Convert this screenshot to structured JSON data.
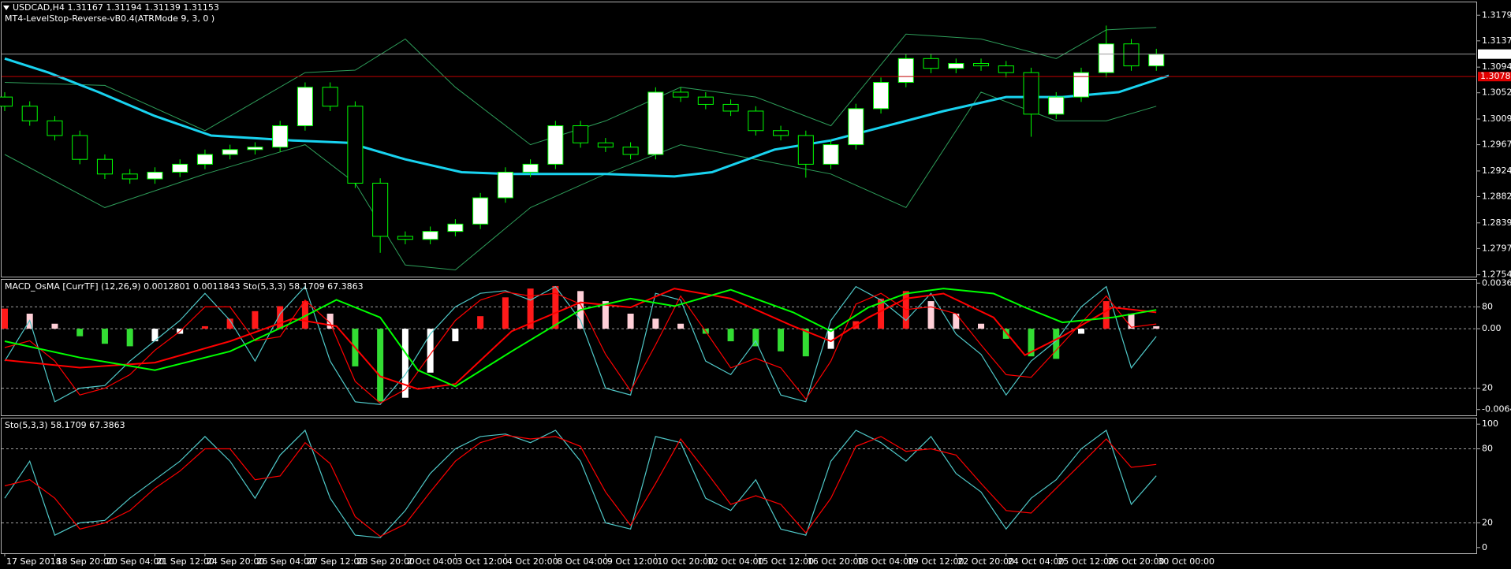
{
  "chart_data": [
    {
      "type": "candlestick",
      "title": "USDCAD,H4  1.31167 1.31194 1.31139 1.31153",
      "subtitle": "MT4-LevelStop-Reverse-vB0.4(ATRMode 9, 3, 0 )",
      "x": [
        0,
        4,
        8,
        12,
        16,
        20,
        24,
        28,
        32,
        36,
        40,
        44,
        48,
        52,
        56,
        60,
        64,
        68,
        72,
        76,
        80,
        84,
        88,
        92,
        96,
        100,
        104,
        108,
        112,
        116,
        120,
        124,
        128,
        132,
        136,
        140,
        144,
        148,
        152,
        156,
        160,
        164,
        168,
        172,
        176,
        180,
        184
      ],
      "open": [
        1.3045,
        1.303,
        1.3006,
        1.2982,
        1.2943,
        1.2919,
        1.2911,
        1.2922,
        1.2935,
        1.2951,
        1.2959,
        1.2963,
        1.2998,
        1.3061,
        1.303,
        1.2904,
        1.2817,
        1.2812,
        1.2825,
        1.2837,
        1.288,
        1.2922,
        1.2935,
        1.2998,
        1.297,
        1.2963,
        1.2951,
        1.3053,
        1.3045,
        1.3033,
        1.3022,
        1.299,
        1.2982,
        1.2935,
        1.2967,
        1.3026,
        1.3069,
        1.3108,
        1.3092,
        1.31,
        1.3096,
        1.3085,
        1.3017,
        1.3045,
        1.3085,
        1.3132,
        1.3096
      ],
      "high": [
        1.3053,
        1.3038,
        1.3014,
        1.299,
        1.2951,
        1.2927,
        1.293,
        1.2943,
        1.2959,
        1.2967,
        1.2971,
        1.3006,
        1.3069,
        1.3069,
        1.3038,
        1.2912,
        1.2825,
        1.2833,
        1.2845,
        1.2888,
        1.293,
        1.2943,
        1.3006,
        1.3006,
        1.2978,
        1.2971,
        1.3061,
        1.3061,
        1.3053,
        1.3041,
        1.303,
        1.2998,
        1.299,
        1.2975,
        1.3034,
        1.3077,
        1.3116,
        1.3116,
        1.3108,
        1.3108,
        1.3104,
        1.3093,
        1.3053,
        1.3093,
        1.3162,
        1.314,
        1.3124
      ],
      "low": [
        1.3022,
        1.2998,
        1.2974,
        1.2935,
        1.2911,
        1.2903,
        1.2903,
        1.2914,
        1.2927,
        1.2943,
        1.2951,
        1.2955,
        1.299,
        1.3022,
        1.2896,
        1.279,
        1.2804,
        1.2804,
        1.2817,
        1.2829,
        1.2872,
        1.2914,
        1.2927,
        1.2962,
        1.2955,
        1.2943,
        1.2943,
        1.3037,
        1.3025,
        1.3014,
        1.2982,
        1.2974,
        1.2913,
        1.2927,
        1.2959,
        1.3018,
        1.3061,
        1.3084,
        1.3084,
        1.3088,
        1.3077,
        1.298,
        1.3009,
        1.3037,
        1.3077,
        1.3088,
        1.3088
      ],
      "close": [
        1.303,
        1.3006,
        1.2982,
        1.2943,
        1.2919,
        1.2911,
        1.2922,
        1.2935,
        1.2951,
        1.2959,
        1.2963,
        1.2998,
        1.3061,
        1.303,
        1.2904,
        1.2817,
        1.2812,
        1.2825,
        1.2837,
        1.288,
        1.2922,
        1.2935,
        1.2998,
        1.297,
        1.2963,
        1.2951,
        1.3053,
        1.3045,
        1.3033,
        1.3022,
        1.299,
        1.2982,
        1.2935,
        1.2967,
        1.3026,
        1.3069,
        1.3108,
        1.3092,
        1.31,
        1.3096,
        1.3085,
        1.3017,
        1.3045,
        1.3085,
        1.3132,
        1.3096,
        1.3115
      ],
      "up_color": "#ffffff",
      "down_color": "#000000",
      "wick_color": "#00ff00",
      "overlays": [
        {
          "color": "#2e9e5a",
          "line_width": 1,
          "x": [
            0,
            16,
            32,
            48,
            56,
            64,
            72,
            84,
            96,
            108,
            120,
            132,
            144,
            156,
            168,
            176,
            184
          ],
          "values": [
            1.3069,
            1.3064,
            1.299,
            1.3085,
            1.3089,
            1.314,
            1.3061,
            1.2967,
            1.3006,
            1.3061,
            1.3045,
            1.2998,
            1.3148,
            1.314,
            1.3108,
            1.3155,
            1.3159
          ]
        },
        {
          "color": "#2e9e5a",
          "line_width": 1,
          "x": [
            0,
            16,
            32,
            48,
            56,
            64,
            72,
            84,
            96,
            108,
            120,
            132,
            144,
            156,
            168,
            176,
            184
          ],
          "values": [
            1.2951,
            1.2864,
            1.2919,
            1.2967,
            1.2904,
            1.277,
            1.2762,
            1.2864,
            1.2919,
            1.2967,
            1.2943,
            1.2919,
            1.2864,
            1.3053,
            1.3006,
            1.3006,
            1.303
          ]
        },
        {
          "color": "#19d3f0",
          "line_width": 3,
          "x": [
            0,
            7,
            15,
            24,
            33,
            46,
            55,
            64,
            73,
            81,
            96,
            107,
            113,
            123,
            132,
            141,
            150,
            160,
            169,
            178,
            186
          ],
          "values": [
            1.3108,
            1.3085,
            1.3053,
            1.3014,
            1.2982,
            1.2974,
            1.297,
            1.2943,
            1.2922,
            1.2919,
            1.2919,
            1.2915,
            1.2922,
            1.2959,
            1.2974,
            1.2998,
            1.3022,
            1.3045,
            1.3045,
            1.3053,
            1.308
          ]
        }
      ],
      "price_lines": [
        {
          "value": 1.31153,
          "color": "#9a9a9a",
          "label_bg": "#ffffff",
          "label_color": "#000000"
        },
        {
          "value": 1.30785,
          "color": "#c00000",
          "label_bg": "#e00000",
          "label_color": "#ffffff"
        }
      ],
      "xlim": [
        -0.5,
        235
      ],
      "ylim": [
        1.2751,
        1.32
      ],
      "yticks": [
        {
          "value": 1.3179,
          "label": "1.31790"
        },
        1.3137,
        1.3094,
        1.3052,
        {
          "value": 1.3009,
          "label": "1.30090"
        },
        1.2967,
        1.2924,
        1.2882,
        1.2839,
        1.2797,
        1.2754
      ]
    },
    {
      "type": "macd",
      "title": "MACD_OsMA [CurrTF] (12,26,9) 0.0012801 0.0011843  Sto(5,3,3) 58.1709 67.3863",
      "values": [
        0.0016,
        0.0012,
        0.0004,
        -0.0006,
        -0.0012,
        -0.0014,
        -0.001,
        -0.0004,
        0.0002,
        0.0008,
        0.0014,
        0.0018,
        0.0022,
        0.0012,
        -0.003,
        -0.0058,
        -0.0055,
        -0.0035,
        -0.001,
        0.001,
        0.0025,
        0.0032,
        0.0034,
        0.003,
        0.0022,
        0.0012,
        0.0008,
        0.0004,
        -0.0004,
        -0.001,
        -0.0014,
        -0.0018,
        -0.0022,
        -0.0016,
        0.0006,
        0.0024,
        0.003,
        0.0022,
        0.0012,
        0.0004,
        -0.0008,
        -0.0022,
        -0.0024,
        -0.0004,
        0.0022,
        0.0012,
        0.0002
      ],
      "bar_colors": {
        "rising_positive": "#ff1a1a",
        "falling_positive": "#ffd0d8",
        "rising_negative": "#ffffff",
        "falling_negative": "#33dd33"
      },
      "lines": [
        {
          "color": "#ff0000",
          "x": [
            0,
            12,
            24,
            36,
            46,
            53,
            60,
            66,
            72,
            81,
            92,
            100,
            107,
            116,
            126,
            132,
            138,
            144,
            150,
            158,
            163,
            169,
            177,
            184
          ],
          "values": [
            -0.0025,
            -0.0031,
            -0.0027,
            -0.001,
            0.0008,
            0.0002,
            -0.0038,
            -0.0048,
            -0.0044,
            -0.0002,
            0.0021,
            0.0017,
            0.0032,
            0.0024,
            0.0002,
            -0.001,
            0.0009,
            0.0024,
            0.0028,
            0.0009,
            -0.0021,
            -0.0006,
            0.0017,
            0.0013
          ]
        },
        {
          "color": "#00ff00",
          "x": [
            0,
            12,
            24,
            36,
            46,
            53,
            60,
            66,
            72,
            81,
            92,
            100,
            107,
            116,
            126,
            132,
            138,
            144,
            150,
            158,
            163,
            169,
            177,
            184
          ],
          "values": [
            -0.001,
            -0.0023,
            -0.0033,
            -0.0018,
            0.0005,
            0.0023,
            0.0009,
            -0.0033,
            -0.0046,
            -0.0018,
            0.0015,
            0.0024,
            0.0018,
            0.0031,
            0.0013,
            -0.0002,
            0.0017,
            0.0028,
            0.0032,
            0.0028,
            0.0017,
            0.0005,
            0.0009,
            0.0015
          ]
        }
      ],
      "stochastic_overlay": true,
      "zero_line": true,
      "xlim": [
        -0.5,
        235
      ],
      "ylim": [
        -0.0069,
        0.0039
      ],
      "yticks": [
        0.003633,
        {
          "value": 0,
          "label": "0.00"
        },
        -0.006443
      ],
      "y2lim": [
        0,
        100
      ],
      "y2ticks": [
        80,
        20
      ]
    },
    {
      "type": "line",
      "title": "Sto(5,3,3) 58.1709 67.3863",
      "series": [
        {
          "color": "#4fc8c8",
          "values": [
            40,
            70,
            10,
            20,
            22,
            40,
            55,
            70,
            90,
            70,
            40,
            75,
            95,
            40,
            10,
            8,
            30,
            60,
            80,
            90,
            92,
            85,
            95,
            70,
            20,
            15,
            90,
            85,
            40,
            30,
            55,
            15,
            10,
            70,
            95,
            85,
            70,
            90,
            60,
            45,
            15,
            40,
            55,
            80,
            95,
            35,
            58.1709
          ]
        },
        {
          "color": "#ff0000",
          "values": [
            50,
            55,
            40,
            15,
            20,
            30,
            48,
            62,
            80,
            80,
            55,
            58,
            85,
            68,
            25,
            9,
            19,
            45,
            70,
            85,
            91,
            88,
            90,
            82,
            45,
            18,
            52,
            88,
            62,
            35,
            42,
            35,
            12,
            40,
            82,
            90,
            78,
            80,
            75,
            52,
            30,
            28,
            48,
            68,
            88,
            65,
            67.3863
          ]
        }
      ],
      "levels": [
        80,
        20
      ],
      "xlim": [
        -0.5,
        235
      ],
      "ylim": [
        -4.6,
        104.6
      ],
      "yticks": [
        100,
        80,
        20,
        0
      ],
      "xticks": [
        {
          "value": 0,
          "label": "17 Sep 2018"
        },
        {
          "value": 8,
          "label": "18 Sep 20:00"
        },
        {
          "value": 16,
          "label": "20 Sep 04:00"
        },
        {
          "value": 24,
          "label": "21 Sep 12:00"
        },
        {
          "value": 32,
          "label": "24 Sep 20:00"
        },
        {
          "value": 40,
          "label": "26 Sep 04:00"
        },
        {
          "value": 48,
          "label": "27 Sep 12:00"
        },
        {
          "value": 56,
          "label": "28 Sep 20:00"
        },
        {
          "value": 64,
          "label": "2 Oct 04:00"
        },
        {
          "value": 72,
          "label": "3 Oct 12:00"
        },
        {
          "value": 80,
          "label": "4 Oct 20:00"
        },
        {
          "value": 88,
          "label": "8 Oct 04:00"
        },
        {
          "value": 96,
          "label": "9 Oct 12:00"
        },
        {
          "value": 104,
          "label": "10 Oct 20:00"
        },
        {
          "value": 112,
          "label": "12 Oct 04:00"
        },
        {
          "value": 120,
          "label": "15 Oct 12:00"
        },
        {
          "value": 128,
          "label": "16 Oct 20:00"
        },
        {
          "value": 136,
          "label": "18 Oct 04:00"
        },
        {
          "value": 144,
          "label": "19 Oct 12:00"
        },
        {
          "value": 152,
          "label": "22 Oct 20:00"
        },
        {
          "value": 160,
          "label": "24 Oct 04:00"
        },
        {
          "value": 168,
          "label": "25 Oct 12:00"
        },
        {
          "value": 176,
          "label": "26 Oct 20:00"
        },
        {
          "value": 184,
          "label": "30 Oct 00:00"
        }
      ]
    }
  ]
}
